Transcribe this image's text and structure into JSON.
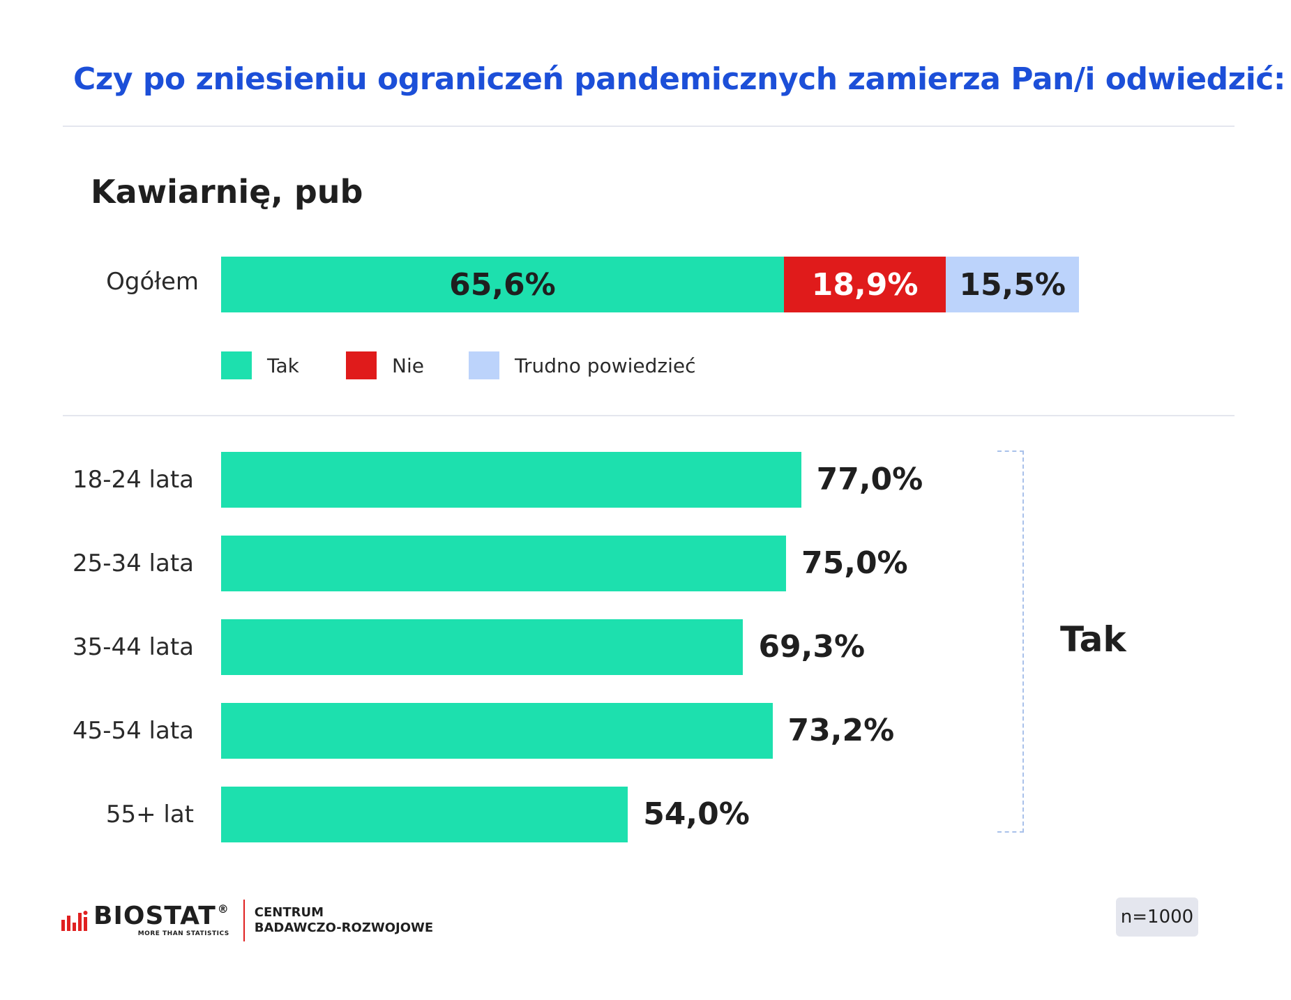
{
  "title": "Czy po zniesieniu ograniczeń pandemicznych zamierza Pan/i odwiedzić:",
  "subtitle": "Kawiarnię, pub",
  "colors": {
    "tak": "#1de0ae",
    "nie": "#e01b1b",
    "trudno": "#bcd3fb",
    "title": "#1c4fd8"
  },
  "chart_data": [
    {
      "type": "bar",
      "orientation": "horizontal",
      "stacked": true,
      "categories": [
        "Ogółem"
      ],
      "series": [
        {
          "name": "Tak",
          "values": [
            65.6
          ],
          "labels": [
            "65,6%"
          ]
        },
        {
          "name": "Nie",
          "values": [
            18.9
          ],
          "labels": [
            "18,9%"
          ]
        },
        {
          "name": "Trudno powiedzieć",
          "values": [
            15.5
          ],
          "labels": [
            "15,5%"
          ]
        }
      ],
      "legend": [
        "Tak",
        "Nie",
        "Trudno powiedzieć"
      ],
      "legend_placement": "bottom",
      "xlim": [
        0,
        100
      ],
      "grid": false
    },
    {
      "type": "bar",
      "orientation": "horizontal",
      "categories": [
        "18-24 lata",
        "25-34 lata",
        "35-44 lata",
        "45-54 lata",
        "55+ lat"
      ],
      "values": [
        77.0,
        75.0,
        69.3,
        73.2,
        54.0
      ],
      "labels": [
        "77,0%",
        "75,0%",
        "69,3%",
        "73,2%",
        "54,0%"
      ],
      "group_label": "Tak",
      "xlim": [
        0,
        100
      ],
      "grid": false
    }
  ],
  "footer": {
    "logo_text": "BIOSTAT",
    "logo_reg": "®",
    "logo_tagline": "MORE THAN STATISTICS",
    "center_line1": "CENTRUM",
    "center_line2": "BADAWCZO-ROZWOJOWE",
    "sample_size": "n=1000"
  }
}
